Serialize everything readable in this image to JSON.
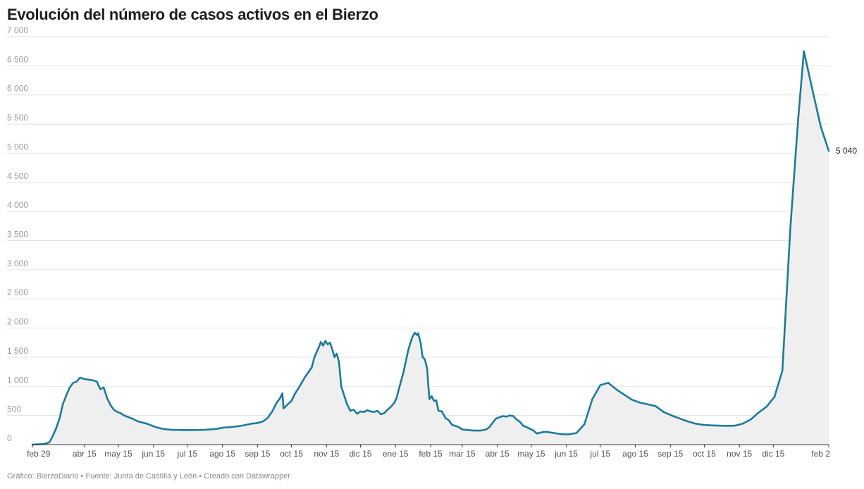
{
  "title": "Evolución del número de casos activos en el Bierzo",
  "footer": "Gráfico: BierzoDiario • Fuente: Junta de Castilla y León • Creado con Datawrapper",
  "colors": {
    "line": "#1d7a99",
    "area": "#efefef",
    "grid": "#e2e2e2"
  },
  "chart_data": {
    "type": "area",
    "title": "Evolución del número de casos activos en el Bierzo",
    "xlabel": "",
    "ylabel": "",
    "ylim": [
      0,
      7000
    ],
    "grid": true,
    "y_ticks": [
      0,
      500,
      1000,
      1500,
      2000,
      2500,
      3000,
      3500,
      4000,
      4500,
      5000,
      5500,
      6000,
      6500,
      7000
    ],
    "y_tick_labels": [
      "0",
      "500",
      "1 000",
      "1 500",
      "2 000",
      "2 500",
      "3 000",
      "3 500",
      "4 000",
      "4 500",
      "5 000",
      "5 500",
      "6 000",
      "6 500",
      "7 000"
    ],
    "x_range": [
      "2020-02-29",
      "2022-02-02"
    ],
    "x_ticks": [
      {
        "date": "2020-02-29",
        "label": "feb 29"
      },
      {
        "date": "2020-04-15",
        "label": "abr 15"
      },
      {
        "date": "2020-05-15",
        "label": "may 15"
      },
      {
        "date": "2020-06-15",
        "label": "jun 15"
      },
      {
        "date": "2020-07-15",
        "label": "jul 15"
      },
      {
        "date": "2020-08-15",
        "label": "ago 15"
      },
      {
        "date": "2020-09-15",
        "label": "sep 15"
      },
      {
        "date": "2020-10-15",
        "label": "oct 15"
      },
      {
        "date": "2020-11-15",
        "label": "nov 15"
      },
      {
        "date": "2020-12-15",
        "label": "dic 15"
      },
      {
        "date": "2021-01-15",
        "label": "ene 15"
      },
      {
        "date": "2021-02-15",
        "label": "feb 15"
      },
      {
        "date": "2021-03-15",
        "label": "mar 15"
      },
      {
        "date": "2021-04-15",
        "label": "abr 15"
      },
      {
        "date": "2021-05-15",
        "label": "may 15"
      },
      {
        "date": "2021-06-15",
        "label": "jun 15"
      },
      {
        "date": "2021-07-15",
        "label": "jul 15"
      },
      {
        "date": "2021-08-15",
        "label": "ago 15"
      },
      {
        "date": "2021-09-15",
        "label": "sep 15"
      },
      {
        "date": "2021-10-15",
        "label": "oct 15"
      },
      {
        "date": "2021-11-15",
        "label": "nov 15"
      },
      {
        "date": "2021-12-15",
        "label": "dic 15"
      },
      {
        "date": "2022-02-02",
        "label": "feb 2"
      }
    ],
    "series": [
      {
        "end_label": "5 040",
        "points": [
          [
            "2020-02-29",
            0
          ],
          [
            "2020-03-10",
            10
          ],
          [
            "2020-03-15",
            40
          ],
          [
            "2020-03-18",
            150
          ],
          [
            "2020-03-21",
            280
          ],
          [
            "2020-03-24",
            450
          ],
          [
            "2020-03-27",
            700
          ],
          [
            "2020-03-30",
            850
          ],
          [
            "2020-04-02",
            980
          ],
          [
            "2020-04-05",
            1060
          ],
          [
            "2020-04-08",
            1080
          ],
          [
            "2020-04-11",
            1150
          ],
          [
            "2020-04-14",
            1130
          ],
          [
            "2020-04-17",
            1120
          ],
          [
            "2020-04-20",
            1110
          ],
          [
            "2020-04-23",
            1100
          ],
          [
            "2020-04-26",
            1080
          ],
          [
            "2020-04-29",
            950
          ],
          [
            "2020-05-02",
            980
          ],
          [
            "2020-05-05",
            800
          ],
          [
            "2020-05-08",
            680
          ],
          [
            "2020-05-11",
            600
          ],
          [
            "2020-05-14",
            560
          ],
          [
            "2020-05-17",
            540
          ],
          [
            "2020-05-20",
            500
          ],
          [
            "2020-05-24",
            470
          ],
          [
            "2020-05-28",
            440
          ],
          [
            "2020-06-01",
            400
          ],
          [
            "2020-06-05",
            380
          ],
          [
            "2020-06-09",
            360
          ],
          [
            "2020-06-13",
            330
          ],
          [
            "2020-06-17",
            300
          ],
          [
            "2020-06-21",
            280
          ],
          [
            "2020-06-25",
            265
          ],
          [
            "2020-07-01",
            255
          ],
          [
            "2020-07-10",
            250
          ],
          [
            "2020-07-20",
            250
          ],
          [
            "2020-07-31",
            255
          ],
          [
            "2020-08-10",
            270
          ],
          [
            "2020-08-15",
            290
          ],
          [
            "2020-08-22",
            300
          ],
          [
            "2020-08-31",
            320
          ],
          [
            "2020-09-05",
            340
          ],
          [
            "2020-09-10",
            360
          ],
          [
            "2020-09-15",
            370
          ],
          [
            "2020-09-20",
            400
          ],
          [
            "2020-09-24",
            460
          ],
          [
            "2020-09-28",
            570
          ],
          [
            "2020-10-02",
            720
          ],
          [
            "2020-10-05",
            800
          ],
          [
            "2020-10-07",
            880
          ],
          [
            "2020-10-08",
            620
          ],
          [
            "2020-10-11",
            680
          ],
          [
            "2020-10-15",
            750
          ],
          [
            "2020-10-18",
            870
          ],
          [
            "2020-10-21",
            960
          ],
          [
            "2020-10-24",
            1060
          ],
          [
            "2020-10-27",
            1160
          ],
          [
            "2020-10-30",
            1240
          ],
          [
            "2020-11-02",
            1330
          ],
          [
            "2020-11-04",
            1480
          ],
          [
            "2020-11-06",
            1580
          ],
          [
            "2020-11-08",
            1660
          ],
          [
            "2020-11-10",
            1760
          ],
          [
            "2020-11-12",
            1700
          ],
          [
            "2020-11-14",
            1780
          ],
          [
            "2020-11-16",
            1720
          ],
          [
            "2020-11-18",
            1750
          ],
          [
            "2020-11-20",
            1640
          ],
          [
            "2020-11-22",
            1500
          ],
          [
            "2020-11-24",
            1560
          ],
          [
            "2020-11-26",
            1420
          ],
          [
            "2020-11-28",
            1000
          ],
          [
            "2020-11-30",
            880
          ],
          [
            "2020-12-03",
            700
          ],
          [
            "2020-12-06",
            580
          ],
          [
            "2020-12-09",
            600
          ],
          [
            "2020-12-12",
            530
          ],
          [
            "2020-12-15",
            570
          ],
          [
            "2020-12-18",
            560
          ],
          [
            "2020-12-21",
            590
          ],
          [
            "2020-12-24",
            570
          ],
          [
            "2020-12-27",
            560
          ],
          [
            "2020-12-30",
            580
          ],
          [
            "2021-01-02",
            520
          ],
          [
            "2021-01-05",
            540
          ],
          [
            "2021-01-08",
            600
          ],
          [
            "2021-01-11",
            650
          ],
          [
            "2021-01-14",
            720
          ],
          [
            "2021-01-16",
            800
          ],
          [
            "2021-01-18",
            960
          ],
          [
            "2021-01-20",
            1100
          ],
          [
            "2021-01-22",
            1240
          ],
          [
            "2021-01-24",
            1420
          ],
          [
            "2021-01-26",
            1600
          ],
          [
            "2021-01-28",
            1740
          ],
          [
            "2021-01-30",
            1850
          ],
          [
            "2021-02-01",
            1920
          ],
          [
            "2021-02-03",
            1880
          ],
          [
            "2021-02-04",
            1910
          ],
          [
            "2021-02-06",
            1760
          ],
          [
            "2021-02-08",
            1500
          ],
          [
            "2021-02-10",
            1460
          ],
          [
            "2021-02-12",
            1300
          ],
          [
            "2021-02-13",
            1000
          ],
          [
            "2021-02-14",
            780
          ],
          [
            "2021-02-16",
            830
          ],
          [
            "2021-02-18",
            750
          ],
          [
            "2021-02-20",
            760
          ],
          [
            "2021-02-22",
            580
          ],
          [
            "2021-02-25",
            570
          ],
          [
            "2021-02-28",
            460
          ],
          [
            "2021-03-03",
            420
          ],
          [
            "2021-03-06",
            340
          ],
          [
            "2021-03-09",
            320
          ],
          [
            "2021-03-12",
            300
          ],
          [
            "2021-03-15",
            260
          ],
          [
            "2021-03-20",
            250
          ],
          [
            "2021-03-25",
            240
          ],
          [
            "2021-03-31",
            240
          ],
          [
            "2021-04-05",
            260
          ],
          [
            "2021-04-08",
            300
          ],
          [
            "2021-04-11",
            380
          ],
          [
            "2021-04-14",
            450
          ],
          [
            "2021-04-17",
            470
          ],
          [
            "2021-04-20",
            490
          ],
          [
            "2021-04-23",
            480
          ],
          [
            "2021-04-26",
            500
          ],
          [
            "2021-04-29",
            490
          ],
          [
            "2021-05-02",
            430
          ],
          [
            "2021-05-05",
            390
          ],
          [
            "2021-05-08",
            320
          ],
          [
            "2021-05-11",
            300
          ],
          [
            "2021-05-14",
            270
          ],
          [
            "2021-05-17",
            240
          ],
          [
            "2021-05-20",
            190
          ],
          [
            "2021-05-24",
            210
          ],
          [
            "2021-05-28",
            220
          ],
          [
            "2021-06-04",
            200
          ],
          [
            "2021-06-10",
            180
          ],
          [
            "2021-06-17",
            175
          ],
          [
            "2021-06-24",
            200
          ],
          [
            "2021-07-01",
            350
          ],
          [
            "2021-07-08",
            780
          ],
          [
            "2021-07-15",
            1020
          ],
          [
            "2021-07-22",
            1060
          ],
          [
            "2021-07-29",
            950
          ],
          [
            "2021-08-05",
            860
          ],
          [
            "2021-08-12",
            770
          ],
          [
            "2021-08-19",
            720
          ],
          [
            "2021-08-26",
            690
          ],
          [
            "2021-09-02",
            660
          ],
          [
            "2021-09-09",
            560
          ],
          [
            "2021-09-16",
            500
          ],
          [
            "2021-09-23",
            450
          ],
          [
            "2021-09-30",
            400
          ],
          [
            "2021-10-07",
            360
          ],
          [
            "2021-10-14",
            340
          ],
          [
            "2021-10-21",
            330
          ],
          [
            "2021-10-28",
            325
          ],
          [
            "2021-11-04",
            320
          ],
          [
            "2021-11-11",
            325
          ],
          [
            "2021-11-18",
            360
          ],
          [
            "2021-11-25",
            430
          ],
          [
            "2021-12-02",
            550
          ],
          [
            "2021-12-09",
            650
          ],
          [
            "2021-12-16",
            820
          ],
          [
            "2021-12-23",
            1270
          ],
          [
            "2021-12-30",
            3700
          ],
          [
            "2022-01-06",
            5600
          ],
          [
            "2022-01-11",
            6750
          ],
          [
            "2022-01-19",
            6050
          ],
          [
            "2022-01-26",
            5450
          ],
          [
            "2022-02-02",
            5040
          ]
        ]
      }
    ]
  }
}
